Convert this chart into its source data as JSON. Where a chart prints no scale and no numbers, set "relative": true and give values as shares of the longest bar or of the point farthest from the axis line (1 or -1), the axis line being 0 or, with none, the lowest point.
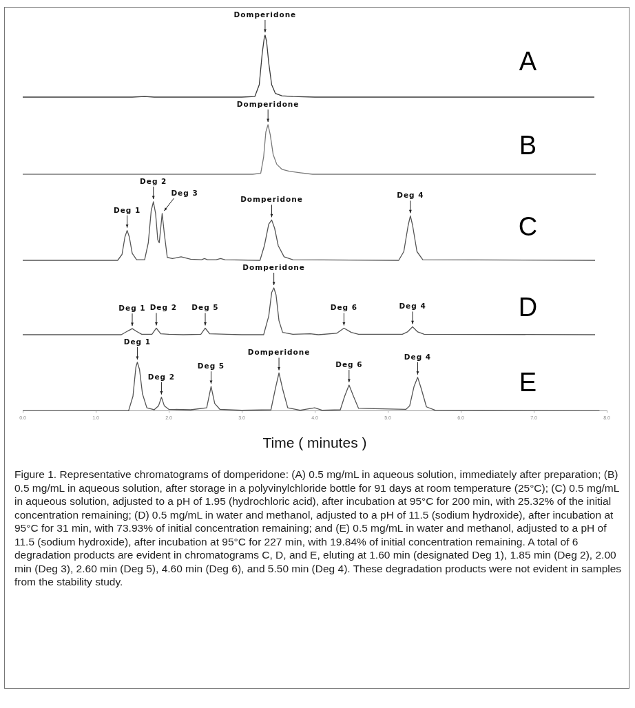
{
  "chart_data": [
    {
      "type": "line",
      "title": "A",
      "relative": true,
      "tick_labels": false,
      "xlim": [
        0,
        8
      ],
      "color": "#3a3a3a",
      "x": [
        0,
        1.5,
        1.67,
        1.8,
        3.0,
        3.18,
        3.24,
        3.28,
        3.31,
        3.32,
        3.34,
        3.37,
        3.41,
        3.46,
        3.55,
        3.7,
        4.0,
        7.83
      ],
      "values": [
        0,
        0,
        0.01,
        0,
        0,
        0.01,
        0.2,
        0.7,
        0.97,
        1,
        0.9,
        0.55,
        0.2,
        0.06,
        0.02,
        0.01,
        0,
        0
      ],
      "annotations": [
        {
          "text": "Domperidone",
          "x": 3.32,
          "y": 1
        }
      ]
    },
    {
      "type": "line",
      "title": "B",
      "relative": true,
      "tick_labels": false,
      "xlim": [
        0,
        8
      ],
      "color": "#7a7a7a",
      "x": [
        0,
        3.15,
        3.26,
        3.3,
        3.33,
        3.36,
        3.39,
        3.43,
        3.48,
        3.55,
        3.65,
        3.8,
        3.97,
        7.85
      ],
      "values": [
        0,
        0,
        0.02,
        0.35,
        0.85,
        1,
        0.8,
        0.4,
        0.2,
        0.1,
        0.06,
        0.03,
        0,
        0
      ],
      "annotations": [
        {
          "text": "Domperidone",
          "x": 3.36,
          "y": 1
        }
      ]
    },
    {
      "type": "line",
      "title": "C",
      "relative": true,
      "tick_labels": false,
      "xlim": [
        0,
        8
      ],
      "color": "#555555",
      "x": [
        0,
        1.3,
        1.36,
        1.4,
        1.43,
        1.46,
        1.5,
        1.56,
        1.67,
        1.72,
        1.76,
        1.79,
        1.82,
        1.85,
        1.87,
        1.91,
        1.94,
        1.98,
        2.05,
        2.17,
        2.3,
        2.45,
        2.49,
        2.53,
        2.65,
        2.71,
        2.77,
        3.25,
        3.31,
        3.37,
        3.41,
        3.45,
        3.5,
        3.58,
        3.7,
        5.15,
        5.22,
        5.28,
        5.31,
        5.34,
        5.4,
        5.48,
        7.84
      ],
      "values": [
        0,
        0,
        0.1,
        0.4,
        0.51,
        0.4,
        0.12,
        0.01,
        0.01,
        0.3,
        0.85,
        1,
        0.8,
        0.35,
        0.3,
        0.8,
        0.45,
        0.05,
        0.03,
        0.06,
        0.02,
        0.01,
        0.03,
        0.01,
        0.01,
        0.03,
        0.01,
        0,
        0.25,
        0.62,
        0.69,
        0.55,
        0.25,
        0.06,
        0.01,
        0,
        0.15,
        0.6,
        0.76,
        0.6,
        0.15,
        0.01,
        0
      ],
      "annotations": [
        {
          "text": "Deg 1",
          "x": 1.43,
          "y": 0.51
        },
        {
          "text": "Deg 2",
          "x": 1.79,
          "y": 1
        },
        {
          "text": "Deg 3",
          "x": 1.91,
          "y": 0.8
        },
        {
          "text": "Domperidone",
          "x": 3.41,
          "y": 0.69
        },
        {
          "text": "Deg 4",
          "x": 5.31,
          "y": 0.76
        }
      ]
    },
    {
      "type": "line",
      "title": "D",
      "relative": true,
      "tick_labels": false,
      "xlim": [
        0,
        8
      ],
      "color": "#555555",
      "x": [
        0,
        1.35,
        1.44,
        1.5,
        1.56,
        1.63,
        1.77,
        1.83,
        1.89,
        2.0,
        2.2,
        2.44,
        2.5,
        2.56,
        2.8,
        3.0,
        3.3,
        3.37,
        3.41,
        3.44,
        3.47,
        3.51,
        3.56,
        3.7,
        3.94,
        4.05,
        4.3,
        4.4,
        4.5,
        4.6,
        5.2,
        5.27,
        5.34,
        5.41,
        5.5,
        7.84
      ],
      "values": [
        0,
        0,
        0.08,
        0.13,
        0.07,
        0.01,
        0.01,
        0.14,
        0.02,
        0.01,
        0,
        0.01,
        0.14,
        0.02,
        0.01,
        0,
        0,
        0.4,
        0.9,
        1,
        0.85,
        0.3,
        0.05,
        0.01,
        0.02,
        0,
        0.03,
        0.14,
        0.05,
        0.01,
        0.01,
        0.06,
        0.17,
        0.06,
        0.01,
        0
      ],
      "annotations": [
        {
          "text": "Deg 1",
          "x": 1.5,
          "y": 0.13
        },
        {
          "text": "Deg 2",
          "x": 1.83,
          "y": 0.14
        },
        {
          "text": "Deg 5",
          "x": 2.5,
          "y": 0.14
        },
        {
          "text": "Domperidone",
          "x": 3.44,
          "y": 1
        },
        {
          "text": "Deg 6",
          "x": 4.4,
          "y": 0.14
        },
        {
          "text": "Deg 4",
          "x": 5.34,
          "y": 0.17
        }
      ]
    },
    {
      "type": "line",
      "title": "E",
      "relative": true,
      "tick_labels": "x",
      "xlim": [
        0,
        8
      ],
      "color": "#555555",
      "xlabel": "Time ( minutes )",
      "xticks": [
        {
          "value": 0,
          "label": "0.0"
        },
        {
          "value": 1,
          "label": "1.0"
        },
        {
          "value": 2,
          "label": "2.0"
        },
        {
          "value": 3,
          "label": "3.0"
        },
        {
          "value": 4,
          "label": "4.0"
        },
        {
          "value": 5,
          "label": "5.0"
        },
        {
          "value": 6,
          "label": "6.0"
        },
        {
          "value": 7,
          "label": "7.0"
        },
        {
          "value": 8,
          "label": "8.0"
        }
      ],
      "x": [
        0,
        1.45,
        1.51,
        1.55,
        1.57,
        1.6,
        1.64,
        1.7,
        1.8,
        1.86,
        1.9,
        1.94,
        2.0,
        2.3,
        2.52,
        2.58,
        2.63,
        2.7,
        3.0,
        3.4,
        3.46,
        3.51,
        3.56,
        3.63,
        3.8,
        4.0,
        4.1,
        4.35,
        4.41,
        4.47,
        4.53,
        4.6,
        5.25,
        5.3,
        5.36,
        5.41,
        5.46,
        5.53,
        5.65,
        7.9
      ],
      "values": [
        0,
        0,
        0.3,
        0.9,
        1,
        0.85,
        0.35,
        0.06,
        0.02,
        0.1,
        0.28,
        0.1,
        0.03,
        0.02,
        0.06,
        0.5,
        0.15,
        0.03,
        0.01,
        0.02,
        0.45,
        0.78,
        0.45,
        0.06,
        0.01,
        0.06,
        0.01,
        0.02,
        0.3,
        0.53,
        0.3,
        0.05,
        0.03,
        0.1,
        0.5,
        0.69,
        0.45,
        0.08,
        0.01,
        0
      ],
      "annotations": [
        {
          "text": "Deg 1",
          "x": 1.57,
          "y": 1
        },
        {
          "text": "Deg 2",
          "x": 1.9,
          "y": 0.28
        },
        {
          "text": "Deg 5",
          "x": 2.58,
          "y": 0.5
        },
        {
          "text": "Domperidone",
          "x": 3.51,
          "y": 0.78
        },
        {
          "text": "Deg 6",
          "x": 4.47,
          "y": 0.53
        },
        {
          "text": "Deg 4",
          "x": 5.41,
          "y": 0.69
        },
        "Figure 1. Representative chromatograms of domperidone: (A) 0.5 mg/mL in aqueous solution, immediately after preparation; (B) 0.5 mg/mL in aqueous solution, after storage in a polyvinylchloride bottle for 91 days at room temperature (25°C); (C) 0.5 mg/mL in aqueous solution, adjusted to a pH of 1.95 (hydrochloric acid), after incubation at 95°C for 200 min, with 25.32% of the initial concentration remaining; (D) 0.5 mg/mL in water and methanol, adjusted to a pH of 11.5 (sodium hydroxide), after incubation at 95°C for 31 min, with 73.93% of initial concentration remaining; and (E) 0.5 mg/mL in water and methanol, adjusted to a pH of 11.5 (sodium hydroxide), after incubation at 95°C for 227 min, with 19.84% of initial concentration remaining. A total of 6 degradation products are evident in chromatograms C, D, and E, eluting at 1.60 min (designated Deg 1), 1.85 min (Deg 2), 2.00 min (Deg 3), 2.60 min (Deg 5), 4.60 min (Deg 6), and 5.50 min (Deg 4). These degradation products were not evident in samples from the stability study."
      ]
    }
  ]
}
